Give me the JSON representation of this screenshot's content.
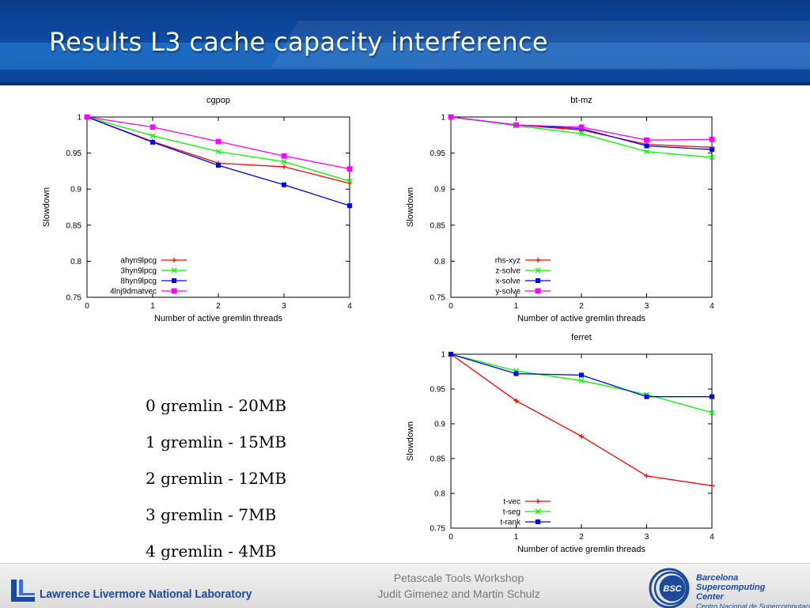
{
  "slide": {
    "title": "Results L3 cache capacity interference"
  },
  "notes": [
    "0 gremlin - 20MB",
    "1 gremlin - 15MB",
    "2 gremlin - 12MB",
    "3 gremlin - 7MB",
    "4 gremlin - 4MB"
  ],
  "footer": {
    "left_org": "Lawrence Livermore National Laboratory",
    "center_line1": "Petascale Tools Workshop",
    "center_line2": "Judit Gimenez and Martin Schulz",
    "bsc_badge": "BSC",
    "bsc_name_lines": [
      "Barcelona",
      "Supercomputing",
      "Center"
    ],
    "bsc_subtitle": "Centro Nacional de Supercomputación"
  },
  "chart_data": [
    {
      "type": "line",
      "title": "cgpop",
      "xlabel": "Number of active gremlin threads",
      "ylabel": "Slowdown",
      "x": [
        0,
        1,
        2,
        3,
        4
      ],
      "xticks": [
        "0",
        "1",
        "2",
        "3",
        "4"
      ],
      "ylim": [
        0.75,
        1
      ],
      "yticks": [
        "0.75",
        "0.8",
        "0.85",
        "0.9",
        "0.95",
        "1"
      ],
      "grid": false,
      "legend": "bottom-left",
      "series": [
        {
          "name": "ahyn9lpcg",
          "color": "#ff0000",
          "marker": "plus",
          "values": [
            1,
            0.966,
            0.936,
            0.931,
            0.908
          ]
        },
        {
          "name": "3hyn9lpcg",
          "color": "#00ff00",
          "marker": "cross",
          "values": [
            1,
            0.974,
            0.952,
            0.938,
            0.911
          ]
        },
        {
          "name": "8hyn9lpcg",
          "color": "#0000ff",
          "marker": "square",
          "values": [
            1,
            0.965,
            0.933,
            0.906,
            0.877
          ]
        },
        {
          "name": "4lnj9dmatvec",
          "color": "#ff00ff",
          "marker": "square-open",
          "values": [
            1,
            0.986,
            0.966,
            0.946,
            0.928
          ]
        }
      ]
    },
    {
      "type": "line",
      "title": "bt-mz",
      "xlabel": "Number of active gremlin threads",
      "ylabel": "Slowdown",
      "x": [
        0,
        1,
        2,
        3,
        4
      ],
      "xticks": [
        "0",
        "1",
        "2",
        "3",
        "4"
      ],
      "ylim": [
        0.75,
        1
      ],
      "yticks": [
        "0.75",
        "0.8",
        "0.85",
        "0.9",
        "0.95",
        "1"
      ],
      "grid": false,
      "legend": "bottom-left",
      "series": [
        {
          "name": "rhs-xyz",
          "color": "#ff0000",
          "marker": "plus",
          "values": [
            1,
            0.989,
            0.982,
            0.962,
            0.958
          ]
        },
        {
          "name": "z-solve",
          "color": "#00ff00",
          "marker": "cross",
          "values": [
            1,
            0.988,
            0.977,
            0.952,
            0.944
          ]
        },
        {
          "name": "x-solve",
          "color": "#0000ff",
          "marker": "square",
          "values": [
            1,
            0.989,
            0.984,
            0.96,
            0.955
          ]
        },
        {
          "name": "y-solve",
          "color": "#ff00ff",
          "marker": "square-open",
          "values": [
            1,
            0.989,
            0.986,
            0.968,
            0.969
          ]
        }
      ]
    },
    {
      "type": "line",
      "title": "ferret",
      "xlabel": "Number of active gremlin threads",
      "ylabel": "Slowdown",
      "x": [
        0,
        1,
        2,
        3,
        4
      ],
      "xticks": [
        "0",
        "1",
        "2",
        "3",
        "4"
      ],
      "ylim": [
        0.75,
        1
      ],
      "yticks": [
        "0.75",
        "0.8",
        "0.85",
        "0.9",
        "0.95",
        "1"
      ],
      "grid": false,
      "legend": "bottom-left",
      "series": [
        {
          "name": "t-vec",
          "color": "#ff0000",
          "marker": "plus",
          "values": [
            1,
            0.933,
            0.882,
            0.825,
            0.811
          ]
        },
        {
          "name": "t-seg",
          "color": "#00ff00",
          "marker": "cross",
          "values": [
            1,
            0.976,
            0.962,
            0.942,
            0.916
          ]
        },
        {
          "name": "t-rank",
          "color": "#0000ff",
          "marker": "square",
          "values": [
            1,
            0.972,
            0.97,
            0.939,
            0.939
          ]
        }
      ]
    }
  ]
}
